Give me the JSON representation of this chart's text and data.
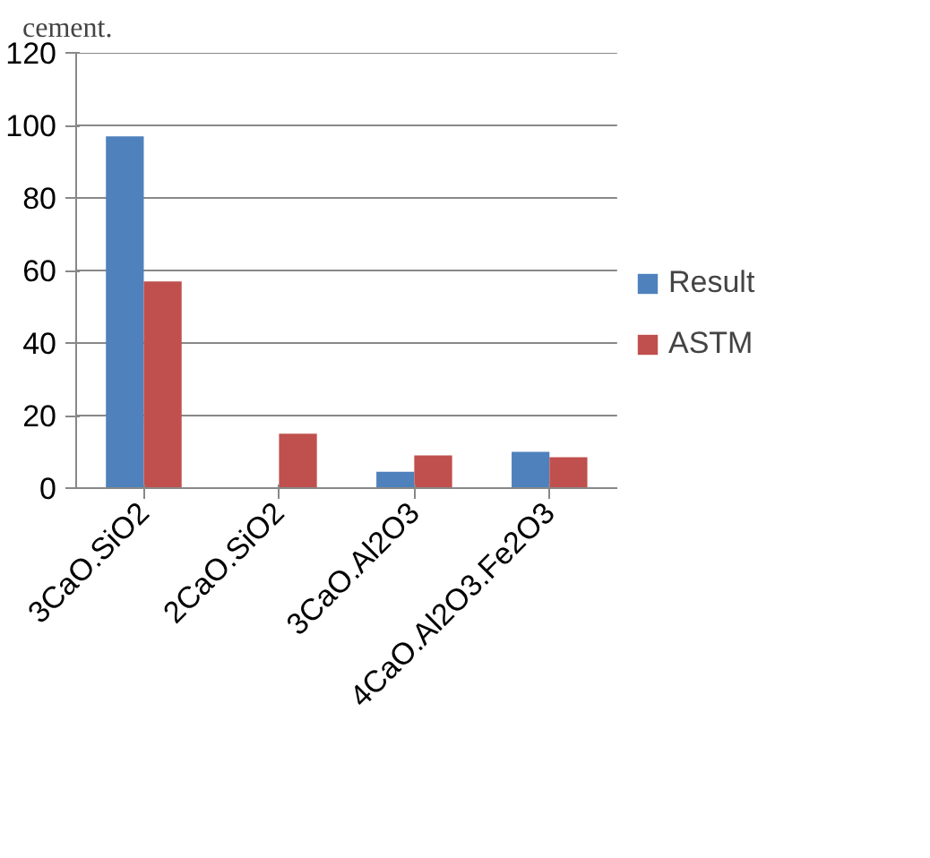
{
  "chart_data": {
    "type": "bar",
    "categories": [
      "3CaO.SiO2",
      "2CaO.SiO2",
      "3CaO.Al2O3",
      "4CaO.Al2O3.Fe2O3"
    ],
    "series": [
      {
        "name": "Result",
        "color": "#4f81bd",
        "values": [
          97,
          0,
          4.5,
          10
        ]
      },
      {
        "name": "ASTM",
        "color": "#c0504d",
        "values": [
          57,
          15,
          9,
          8.5
        ]
      }
    ],
    "ylim": [
      0,
      120
    ],
    "yticks": [
      0,
      20,
      40,
      60,
      80,
      100,
      120
    ],
    "grid": "y",
    "legend": "right",
    "annotations": [
      "cement."
    ]
  }
}
